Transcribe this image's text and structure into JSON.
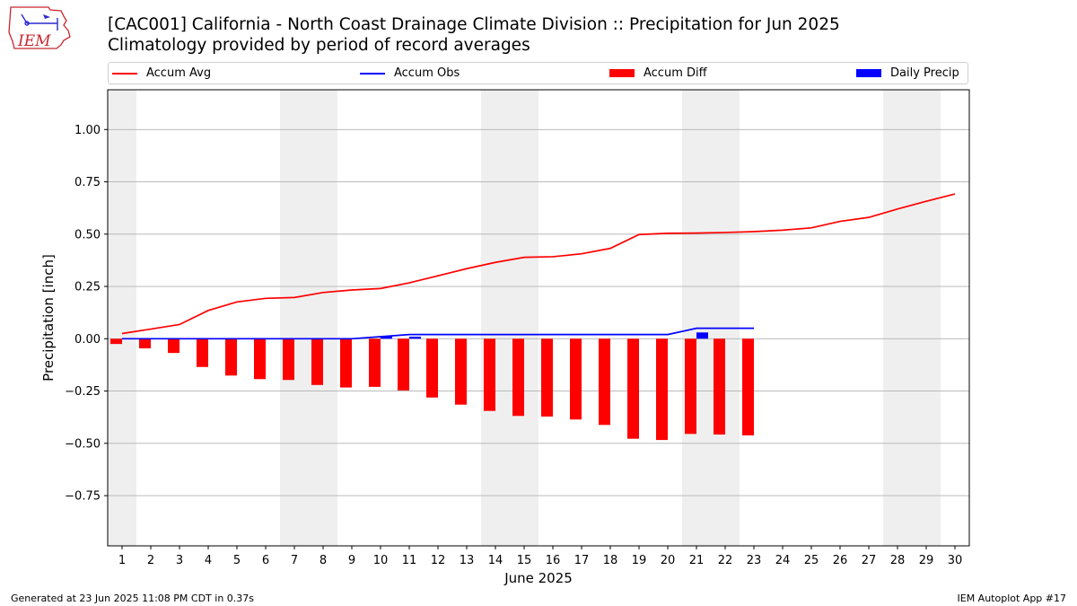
{
  "header": {
    "title_line1": "[CAC001] California - North Coast Drainage Climate Division :: Precipitation for Jun 2025",
    "title_line2": "Climatology provided by period of record averages"
  },
  "logo": {
    "text": "IEM",
    "icon": "iem-logo-icon",
    "color": "#c8262c"
  },
  "legend": [
    {
      "label": "Accum Avg",
      "kind": "line",
      "color": "#ff0000"
    },
    {
      "label": "Accum Obs",
      "kind": "line",
      "color": "#0000ff"
    },
    {
      "label": "Accum Diff",
      "kind": "bar",
      "color": "#ff0000"
    },
    {
      "label": "Daily Precip",
      "kind": "bar",
      "color": "#0000ff"
    }
  ],
  "footer": {
    "left": "Generated at 23 Jun 2025 11:08 PM CDT in 0.37s",
    "right": "IEM Autoplot App #17"
  },
  "chart_data": {
    "type": "bar",
    "xlabel": "June 2025",
    "ylabel": "Precipitation [inch]",
    "x": [
      1,
      2,
      3,
      4,
      5,
      6,
      7,
      8,
      9,
      10,
      11,
      12,
      13,
      14,
      15,
      16,
      17,
      18,
      19,
      20,
      21,
      22,
      23,
      24,
      25,
      26,
      27,
      28,
      29,
      30
    ],
    "xlim": [
      0.5,
      30.5
    ],
    "ylim": [
      -0.99,
      1.19
    ],
    "yticks": [
      -0.75,
      -0.5,
      -0.25,
      0.0,
      0.25,
      0.5,
      0.75,
      1.0
    ],
    "ytick_labels": [
      "−0.75",
      "−0.50",
      "−0.25",
      "0.00",
      "0.25",
      "0.50",
      "0.75",
      "1.00"
    ],
    "grid": "horizontal",
    "weekend_shading": [
      [
        0.5,
        1.5
      ],
      [
        6.5,
        8.5
      ],
      [
        13.5,
        15.5
      ],
      [
        20.5,
        22.5
      ],
      [
        27.5,
        29.5
      ]
    ],
    "shade_color": "#efefef",
    "series": [
      {
        "name": "Accum Avg",
        "type": "line",
        "color": "#ff0000",
        "x": [
          1,
          2,
          3,
          4,
          5,
          6,
          7,
          8,
          9,
          10,
          11,
          12,
          13,
          14,
          15,
          16,
          17,
          18,
          19,
          20,
          21,
          22,
          23,
          24,
          25,
          26,
          27,
          28,
          29,
          30
        ],
        "values": [
          0.025,
          0.046,
          0.068,
          0.135,
          0.176,
          0.193,
          0.197,
          0.221,
          0.233,
          0.24,
          0.267,
          0.301,
          0.335,
          0.365,
          0.389,
          0.392,
          0.406,
          0.432,
          0.498,
          0.504,
          0.505,
          0.508,
          0.512,
          0.519,
          0.53,
          0.561,
          0.58,
          0.62,
          0.657,
          0.692
        ]
      },
      {
        "name": "Accum Obs",
        "type": "line",
        "color": "#0000ff",
        "x": [
          1,
          2,
          3,
          4,
          5,
          6,
          7,
          8,
          9,
          10,
          11,
          12,
          13,
          14,
          15,
          16,
          17,
          18,
          19,
          20,
          21,
          22,
          23
        ],
        "values": [
          0,
          0,
          0,
          0,
          0,
          0,
          0,
          0,
          0,
          0.01,
          0.02,
          0.02,
          0.02,
          0.02,
          0.02,
          0.02,
          0.02,
          0.02,
          0.02,
          0.02,
          0.05,
          0.05,
          0.05
        ]
      },
      {
        "name": "Accum Diff",
        "type": "bar",
        "color": "#ff0000",
        "x": [
          1,
          2,
          3,
          4,
          5,
          6,
          7,
          8,
          9,
          10,
          11,
          12,
          13,
          14,
          15,
          16,
          17,
          18,
          19,
          20,
          21,
          22,
          23
        ],
        "values": [
          -0.025,
          -0.046,
          -0.068,
          -0.135,
          -0.176,
          -0.193,
          -0.197,
          -0.221,
          -0.233,
          -0.23,
          -0.247,
          -0.281,
          -0.315,
          -0.345,
          -0.369,
          -0.372,
          -0.386,
          -0.412,
          -0.478,
          -0.484,
          -0.455,
          -0.458,
          -0.462
        ]
      },
      {
        "name": "Daily Precip",
        "type": "bar",
        "color": "#0000ff",
        "x": [
          1,
          2,
          3,
          4,
          5,
          6,
          7,
          8,
          9,
          10,
          11,
          12,
          13,
          14,
          15,
          16,
          17,
          18,
          19,
          20,
          21,
          22,
          23
        ],
        "values": [
          0,
          0,
          0,
          0,
          0,
          0,
          0,
          0,
          0,
          0.01,
          0.01,
          0,
          0,
          0,
          0,
          0,
          0,
          0,
          0,
          0,
          0.03,
          0,
          0
        ]
      }
    ]
  }
}
